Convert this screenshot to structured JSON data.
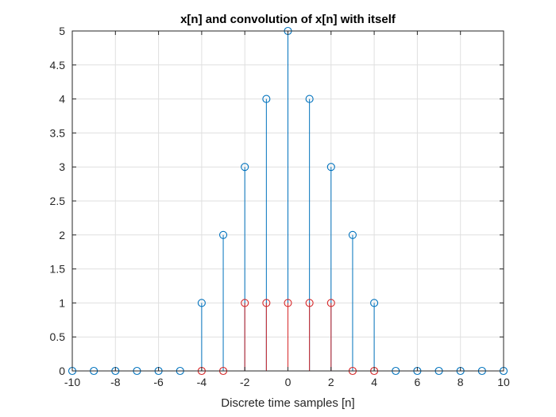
{
  "chart_data": {
    "type": "stem",
    "title": "x[n] and convolution of x[n] with itself",
    "xlabel": "Discrete time samples [n]",
    "ylabel": "",
    "xlim": [
      -10,
      10
    ],
    "ylim": [
      0,
      5
    ],
    "x_ticks": [
      -10,
      -8,
      -6,
      -4,
      -2,
      0,
      2,
      4,
      6,
      8,
      10
    ],
    "x_tick_labels": [
      "-10",
      "-8",
      "-6",
      "-4",
      "-2",
      "0",
      "2",
      "4",
      "6",
      "8",
      "10"
    ],
    "y_ticks": [
      0,
      0.5,
      1,
      1.5,
      2,
      2.5,
      3,
      3.5,
      4,
      4.5,
      5
    ],
    "y_tick_labels": [
      "0",
      "0.5",
      "1",
      "1.5",
      "2",
      "2.5",
      "3",
      "3.5",
      "4",
      "4.5",
      "5"
    ],
    "grid": true,
    "box": true,
    "series": [
      {
        "color": "#0072BD",
        "x": [
          -10,
          -9,
          -8,
          -7,
          -6,
          -5,
          -4,
          -3,
          -2,
          -1,
          0,
          1,
          2,
          3,
          4,
          5,
          6,
          7,
          8,
          9,
          10
        ],
        "values": [
          0,
          0,
          0,
          0,
          0,
          0,
          1,
          2,
          3,
          4,
          5,
          4,
          3,
          2,
          1,
          0,
          0,
          0,
          0,
          0,
          0
        ]
      },
      {
        "color": "#D62728",
        "x": [
          -4,
          -3,
          -2,
          -1,
          0,
          1,
          2,
          3,
          4
        ],
        "values": [
          0,
          0,
          1,
          1,
          1,
          1,
          1,
          0,
          0
        ]
      }
    ]
  }
}
